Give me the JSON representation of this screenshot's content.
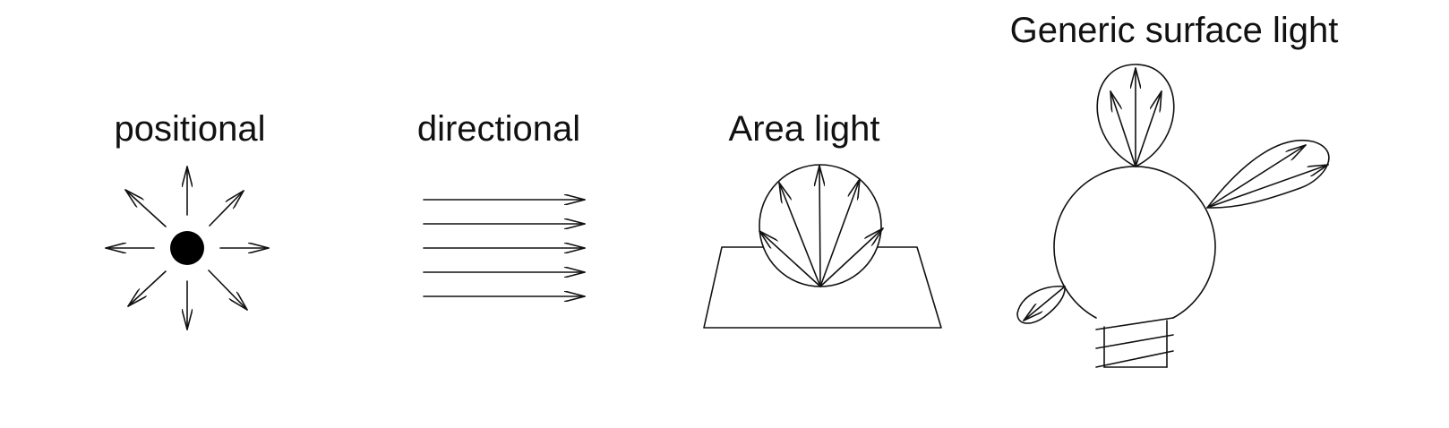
{
  "diagram": {
    "labels": {
      "positional": "positional",
      "directional": "directional",
      "area": "Area light",
      "generic": "Generic surface light"
    },
    "stroke_color": "#111111",
    "background_color": "#ffffff"
  }
}
